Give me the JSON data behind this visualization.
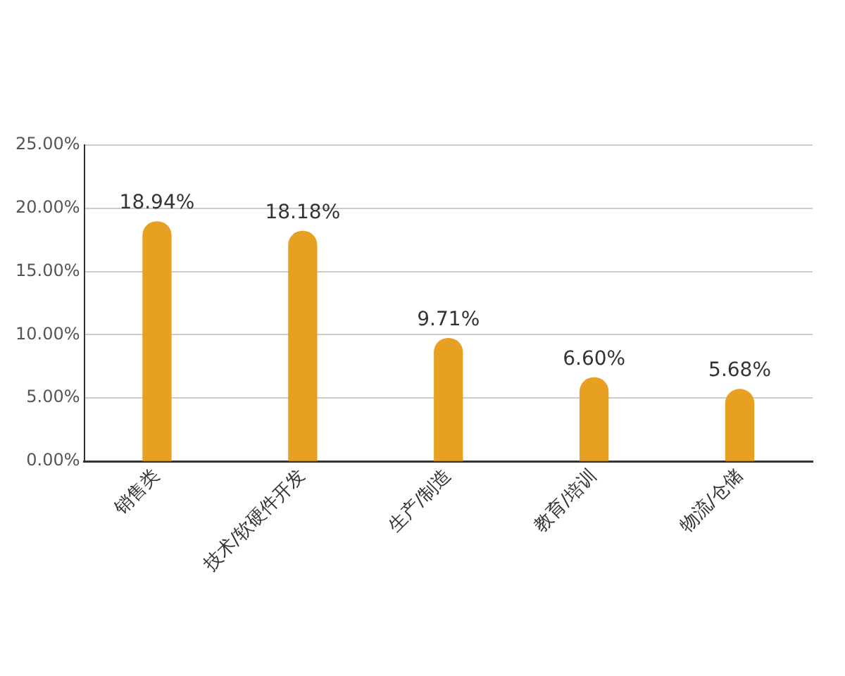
{
  "chart_data": {
    "type": "bar",
    "categories": [
      "销售类",
      "技术/软硬件开发",
      "生产/制造",
      "教育/培训",
      "物流/仓储"
    ],
    "values": [
      18.94,
      18.18,
      9.71,
      6.6,
      5.68
    ],
    "value_labels": [
      "18.94%",
      "18.18%",
      "9.71%",
      "6.60%",
      "5.68%"
    ],
    "color": "#e8a023",
    "ylim": [
      0,
      25
    ],
    "yticks": [
      {
        "value": 0,
        "label": "0.00%"
      },
      {
        "value": 5,
        "label": "5.00%"
      },
      {
        "value": 10,
        "label": "10.00%"
      },
      {
        "value": 15,
        "label": "15.00%"
      },
      {
        "value": 20,
        "label": "20.00%"
      },
      {
        "value": 25,
        "label": "25.00%"
      }
    ],
    "grid": "y"
  }
}
